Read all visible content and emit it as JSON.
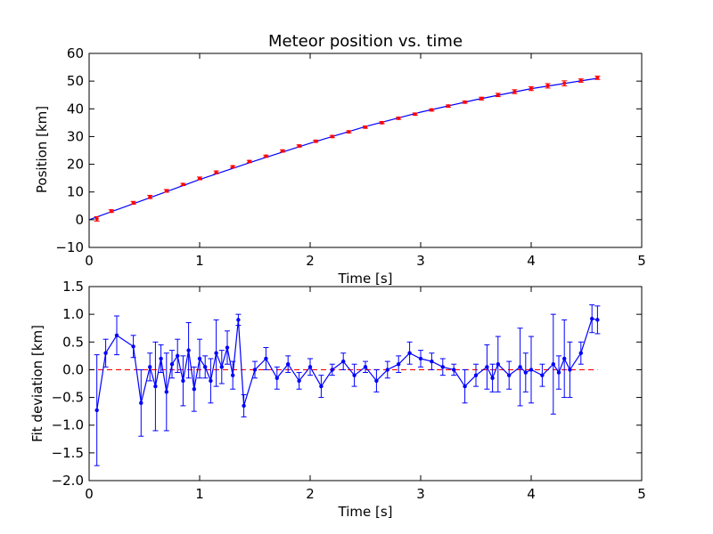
{
  "chart_data": [
    {
      "type": "scatter",
      "title": "Meteor position vs. time",
      "xlabel": "Time [s]",
      "ylabel": "Position [km]",
      "xlim": [
        0,
        5
      ],
      "ylim": [
        -10,
        60
      ],
      "xticks": [
        "0",
        "1",
        "2",
        "3",
        "4",
        "5"
      ],
      "yticks": [
        "−10",
        "0",
        "10",
        "20",
        "30",
        "40",
        "50",
        "60"
      ],
      "grid": false,
      "colors": {
        "points": "#ff0000",
        "fit": "#0000ff",
        "errorbars": "#ff0000"
      },
      "series": [
        {
          "kind": "points-with-errorbars",
          "x": [
            0.07,
            0.2,
            0.4,
            0.55,
            0.7,
            0.85,
            1.0,
            1.15,
            1.3,
            1.45,
            1.6,
            1.75,
            1.9,
            2.05,
            2.2,
            2.35,
            2.5,
            2.65,
            2.8,
            2.95,
            3.1,
            3.25,
            3.4,
            3.55,
            3.7,
            3.85,
            4.0,
            4.15,
            4.3,
            4.45,
            4.6
          ],
          "y": [
            0.3,
            3.1,
            6.1,
            8.2,
            10.4,
            12.7,
            14.9,
            17.1,
            19.1,
            21.0,
            22.9,
            24.8,
            26.6,
            28.3,
            30.0,
            31.7,
            33.4,
            35.0,
            36.6,
            38.1,
            39.6,
            41.0,
            42.4,
            43.7,
            45.0,
            46.2,
            47.3,
            48.3,
            49.2,
            50.2,
            51.2
          ],
          "yerr": [
            0.8,
            0.5,
            0.5,
            0.6,
            0.5,
            0.4,
            0.5,
            0.5,
            0.4,
            0.4,
            0.4,
            0.4,
            0.4,
            0.4,
            0.4,
            0.4,
            0.4,
            0.4,
            0.4,
            0.4,
            0.4,
            0.4,
            0.4,
            0.5,
            0.6,
            0.7,
            0.7,
            0.8,
            0.9,
            0.6,
            0.6
          ]
        },
        {
          "kind": "fit-line",
          "x": [
            0.0,
            0.5,
            1.0,
            1.5,
            2.0,
            2.5,
            3.0,
            3.5,
            4.0,
            4.5,
            4.6
          ],
          "y": [
            0.0,
            7.2,
            14.5,
            21.2,
            27.6,
            33.6,
            38.8,
            43.3,
            47.3,
            50.4,
            51.0
          ]
        }
      ]
    },
    {
      "type": "line",
      "xlabel": "Time [s]",
      "ylabel": "Fit deviation [km]",
      "xlim": [
        0,
        5
      ],
      "ylim": [
        -2.0,
        1.5
      ],
      "xticks": [
        "0",
        "1",
        "2",
        "3",
        "4",
        "5"
      ],
      "yticks": [
        "−2.0",
        "−1.5",
        "−1.0",
        "−0.5",
        "0.0",
        "0.5",
        "1.0",
        "1.5"
      ],
      "grid": false,
      "colors": {
        "line": "#0000ff",
        "zero_line": "#ff0000"
      },
      "series": [
        {
          "kind": "deviation-with-errorbars",
          "x": [
            0.07,
            0.15,
            0.25,
            0.4,
            0.47,
            0.55,
            0.6,
            0.65,
            0.7,
            0.75,
            0.8,
            0.85,
            0.9,
            0.95,
            1.0,
            1.05,
            1.1,
            1.15,
            1.2,
            1.25,
            1.3,
            1.35,
            1.4,
            1.5,
            1.6,
            1.7,
            1.8,
            1.9,
            2.0,
            2.1,
            2.2,
            2.3,
            2.4,
            2.5,
            2.6,
            2.7,
            2.8,
            2.9,
            3.0,
            3.1,
            3.2,
            3.3,
            3.4,
            3.5,
            3.6,
            3.65,
            3.7,
            3.8,
            3.9,
            3.95,
            4.0,
            4.1,
            4.2,
            4.25,
            4.3,
            4.35,
            4.45,
            4.55,
            4.6
          ],
          "y": [
            -0.73,
            0.3,
            0.62,
            0.42,
            -0.6,
            0.05,
            -0.3,
            0.2,
            -0.4,
            0.1,
            0.25,
            -0.2,
            0.35,
            -0.35,
            0.2,
            0.05,
            -0.2,
            0.3,
            0.05,
            0.4,
            -0.1,
            0.9,
            -0.65,
            0.0,
            0.2,
            -0.15,
            0.1,
            -0.2,
            0.05,
            -0.3,
            0.0,
            0.15,
            -0.1,
            0.05,
            -0.2,
            0.0,
            0.1,
            0.3,
            0.2,
            0.15,
            0.05,
            0.0,
            -0.3,
            -0.1,
            0.05,
            -0.15,
            0.1,
            -0.1,
            0.05,
            -0.05,
            0.0,
            -0.1,
            0.1,
            -0.05,
            0.2,
            0.0,
            0.3,
            0.92,
            0.9
          ],
          "yerr": [
            1.0,
            0.25,
            0.35,
            0.2,
            0.6,
            0.25,
            0.8,
            0.25,
            0.7,
            0.25,
            0.3,
            0.45,
            0.5,
            0.4,
            0.35,
            0.2,
            0.4,
            0.6,
            0.3,
            0.3,
            0.25,
            0.1,
            0.2,
            0.15,
            0.2,
            0.2,
            0.15,
            0.15,
            0.15,
            0.2,
            0.1,
            0.15,
            0.2,
            0.1,
            0.2,
            0.15,
            0.15,
            0.2,
            0.15,
            0.15,
            0.15,
            0.1,
            0.3,
            0.2,
            0.4,
            0.25,
            0.5,
            0.25,
            0.7,
            0.35,
            0.6,
            0.2,
            0.9,
            0.3,
            0.7,
            0.5,
            0.2,
            0.25,
            0.25
          ]
        },
        {
          "kind": "zero-line",
          "x": [
            0,
            4.6
          ],
          "y": [
            0,
            0
          ]
        }
      ]
    }
  ]
}
